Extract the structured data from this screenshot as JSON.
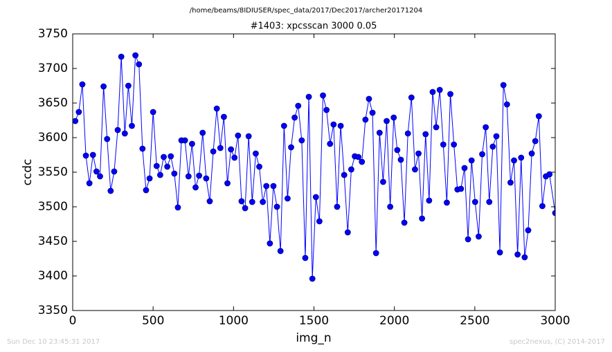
{
  "chart_data": {
    "type": "line",
    "suptitle": "/home/beams/8IDIUSER/spec_data/2017/Dec2017/archer20171204",
    "title": "#1403: xpcsscan 3000 0.05",
    "xlabel": "img_n",
    "ylabel": "ccdc",
    "footer_left": "Sun Dec 10 23:45:31 2017",
    "footer_right": "spec2nexus, (C) 2014-2017",
    "x": [
      16,
      38,
      60,
      82,
      104,
      126,
      148,
      170,
      192,
      214,
      236,
      258,
      280,
      302,
      324,
      346,
      368,
      390,
      412,
      434,
      456,
      478,
      500,
      522,
      544,
      566,
      588,
      610,
      632,
      654,
      676,
      698,
      720,
      742,
      764,
      786,
      808,
      830,
      852,
      874,
      896,
      918,
      940,
      962,
      984,
      1006,
      1028,
      1050,
      1072,
      1094,
      1116,
      1138,
      1160,
      1182,
      1204,
      1226,
      1248,
      1270,
      1292,
      1314,
      1336,
      1358,
      1380,
      1402,
      1424,
      1446,
      1468,
      1490,
      1512,
      1534,
      1556,
      1578,
      1600,
      1622,
      1644,
      1666,
      1688,
      1710,
      1732,
      1754,
      1776,
      1798,
      1820,
      1842,
      1864,
      1886,
      1908,
      1930,
      1952,
      1974,
      1996,
      2018,
      2040,
      2062,
      2084,
      2106,
      2128,
      2150,
      2172,
      2194,
      2216,
      2238,
      2260,
      2282,
      2304,
      2326,
      2348,
      2370,
      2392,
      2414,
      2436,
      2458,
      2480,
      2502,
      2524,
      2546,
      2568,
      2590,
      2612,
      2634,
      2656,
      2678,
      2700,
      2722,
      2744,
      2766,
      2788,
      2810,
      2832,
      2854,
      2876,
      2898,
      2920,
      2942,
      2964,
      3000
    ],
    "series": [
      {
        "color": "#0000ff",
        "marker_edge": "#000080",
        "values": [
          3624,
          3637,
          3677,
          3574,
          3534,
          3575,
          3551,
          3544,
          3674,
          3598,
          3523,
          3551,
          3611,
          3717,
          3606,
          3675,
          3617,
          3719,
          3706,
          3584,
          3524,
          3541,
          3637,
          3559,
          3546,
          3572,
          3558,
          3573,
          3548,
          3499,
          3596,
          3596,
          3544,
          3591,
          3528,
          3545,
          3607,
          3541,
          3508,
          3580,
          3642,
          3585,
          3630,
          3534,
          3583,
          3571,
          3603,
          3508,
          3498,
          3602,
          3507,
          3577,
          3558,
          3507,
          3530,
          3447,
          3530,
          3500,
          3436,
          3617,
          3512,
          3586,
          3629,
          3646,
          3596,
          3426,
          3659,
          3396,
          3514,
          3479,
          3661,
          3640,
          3591,
          3619,
          3500,
          3617,
          3546,
          3463,
          3554,
          3573,
          3572,
          3565,
          3626,
          3656,
          3636,
          3433,
          3607,
          3536,
          3624,
          3500,
          3629,
          3582,
          3568,
          3477,
          3606,
          3658,
          3554,
          3577,
          3483,
          3605,
          3509,
          3666,
          3615,
          3669,
          3590,
          3506,
          3663,
          3590,
          3525,
          3526,
          3556,
          3453,
          3567,
          3507,
          3457,
          3576,
          3615,
          3507,
          3587,
          3602,
          3434,
          3676,
          3648,
          3535,
          3567,
          3431,
          3571,
          3427,
          3466,
          3577,
          3595,
          3631,
          3501,
          3544,
          3547,
          3491
        ]
      }
    ],
    "xlim": [
      0,
      3000
    ],
    "ylim": [
      3350,
      3750
    ],
    "xticks": [
      0,
      500,
      1000,
      1500,
      2000,
      2500,
      3000
    ],
    "yticks": [
      3350,
      3400,
      3450,
      3500,
      3550,
      3600,
      3650,
      3700,
      3750
    ]
  }
}
